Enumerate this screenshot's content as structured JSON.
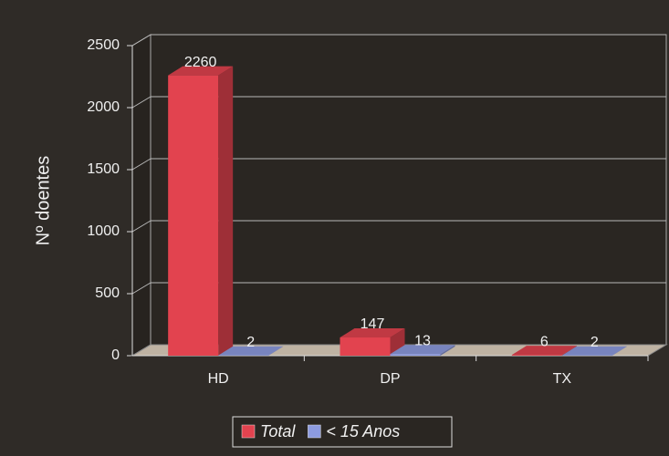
{
  "chart_data": {
    "type": "bar3d",
    "categories": [
      "HD",
      "DP",
      "TX"
    ],
    "series": [
      {
        "name": "Total",
        "color": "#e2434f",
        "values": [
          2260,
          147,
          6
        ]
      },
      {
        "name": "< 15 Anos",
        "color": "#8d9be0",
        "values": [
          2,
          13,
          2
        ]
      }
    ],
    "y_label": "Nº doentes",
    "ylim": [
      0,
      2500
    ],
    "yticks": [
      0,
      500,
      1000,
      1500,
      2000,
      2500
    ],
    "grid": true,
    "legend": "bottom"
  }
}
